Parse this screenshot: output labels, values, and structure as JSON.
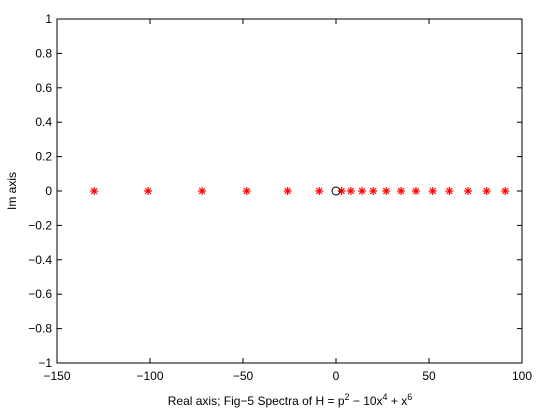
{
  "chart_data": {
    "type": "scatter",
    "title": "",
    "xlabel": "Real axis; Fig−5 Spectra of H = p",
    "xlabel_parts": {
      "p_exp": "2",
      "mid": " − 10x",
      "x4_exp": "4",
      "plus": " + x",
      "x6_exp": "6"
    },
    "ylabel": "Im axis",
    "xlim": [
      -150,
      100
    ],
    "ylim": [
      -1,
      1
    ],
    "xticks": [
      -150,
      -100,
      -50,
      0,
      50,
      100
    ],
    "xtick_labels": [
      "−150",
      "−100",
      "−50",
      "0",
      "50",
      "100"
    ],
    "yticks": [
      -1,
      -0.8,
      -0.6,
      -0.4,
      -0.2,
      0,
      0.2,
      0.4,
      0.6,
      0.8,
      1
    ],
    "ytick_labels": [
      "−1",
      "−0.8",
      "−0.6",
      "−0.4",
      "−0.2",
      "0",
      "0.2",
      "0.4",
      "0.6",
      "0.8",
      "1"
    ],
    "grid": false,
    "series": [
      {
        "marker": "star",
        "color": "#ff0000",
        "points": [
          {
            "x": -130,
            "y": 0
          },
          {
            "x": -101,
            "y": 0
          },
          {
            "x": -72,
            "y": 0
          },
          {
            "x": -48,
            "y": 0
          },
          {
            "x": -26,
            "y": 0
          },
          {
            "x": -9,
            "y": 0
          },
          {
            "x": 3,
            "y": 0
          },
          {
            "x": 8,
            "y": 0
          },
          {
            "x": 14,
            "y": 0
          },
          {
            "x": 20,
            "y": 0
          },
          {
            "x": 27,
            "y": 0
          },
          {
            "x": 35,
            "y": 0
          },
          {
            "x": 43,
            "y": 0
          },
          {
            "x": 52,
            "y": 0
          },
          {
            "x": 61,
            "y": 0
          },
          {
            "x": 71,
            "y": 0
          },
          {
            "x": 81,
            "y": 0
          },
          {
            "x": 91,
            "y": 0
          }
        ]
      },
      {
        "marker": "circle",
        "color": "#000000",
        "points": [
          {
            "x": 0,
            "y": 0
          }
        ]
      }
    ]
  }
}
